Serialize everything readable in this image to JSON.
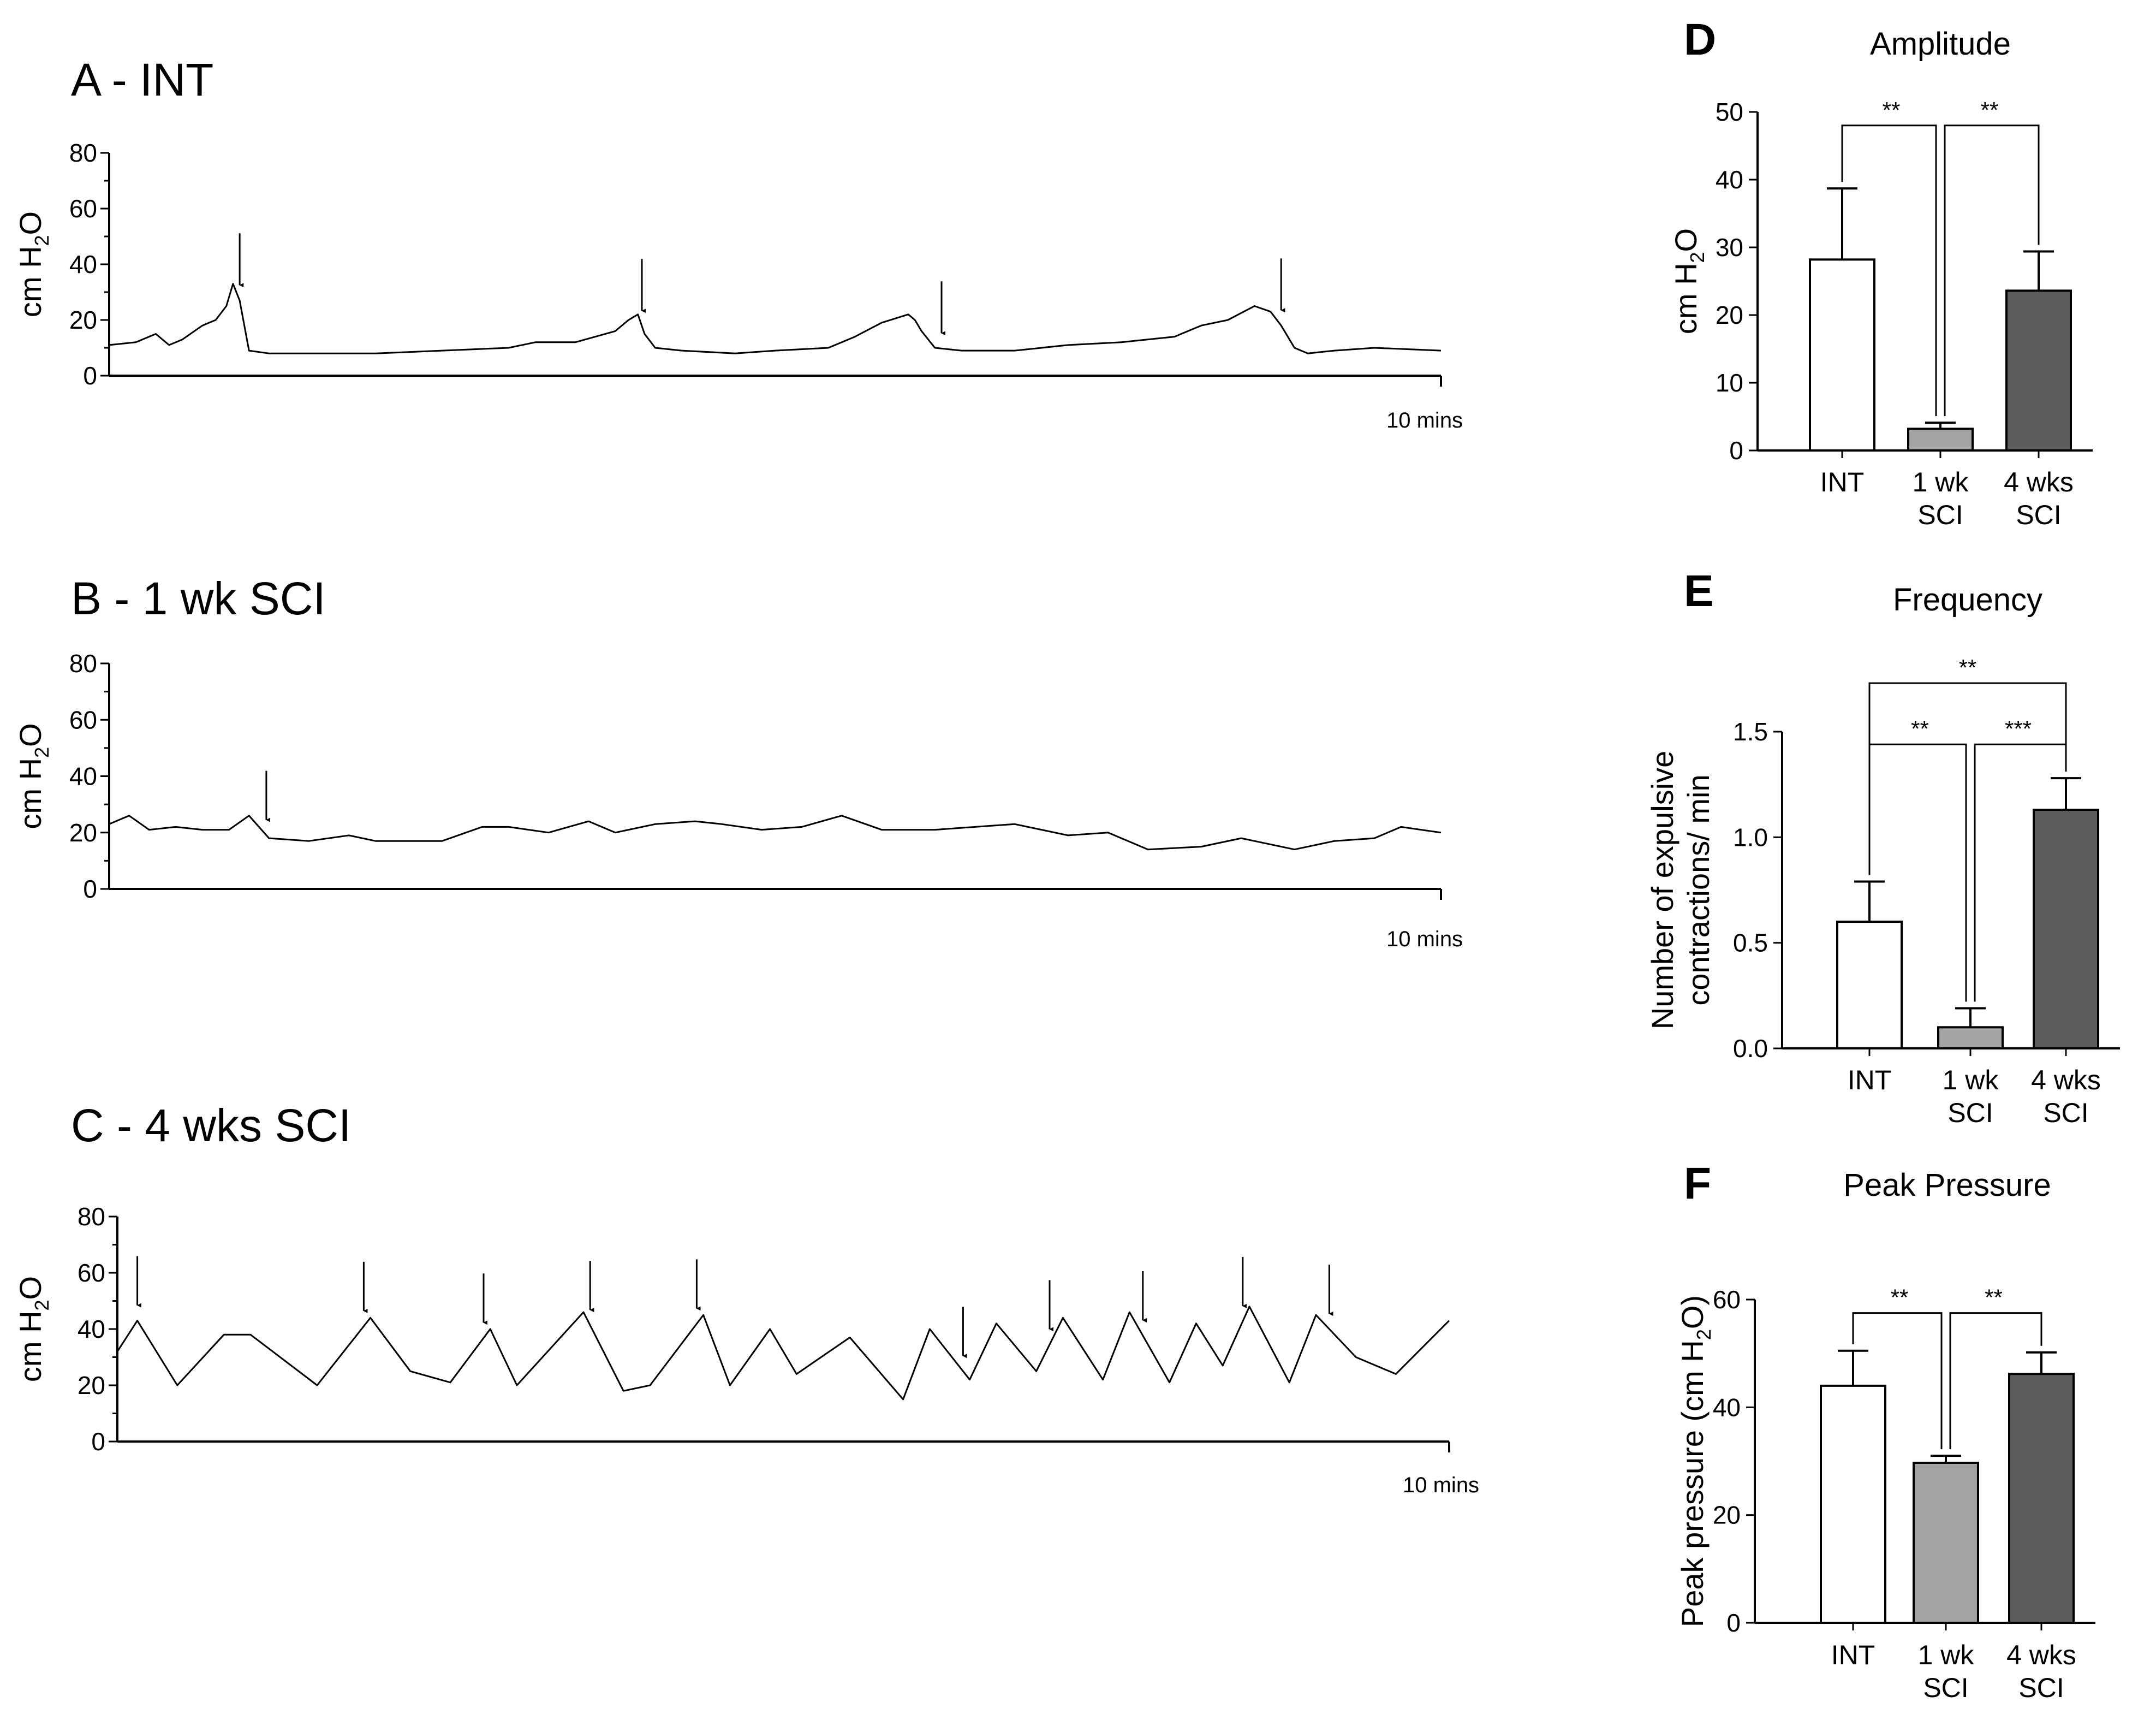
{
  "chart_data": [
    {
      "panel": "A",
      "title": "A - INT",
      "type": "line",
      "ylabel_main": "cm H",
      "ylabel_sub": "2",
      "ylabel_end": "O",
      "yticks": [
        0,
        20,
        40,
        60,
        80
      ],
      "ylim": [
        0,
        80
      ],
      "xlim": [
        0,
        10
      ],
      "x_end_label": "10 mins",
      "series": [
        {
          "name": "INT trace",
          "x": [
            0,
            0.2,
            0.35,
            0.45,
            0.55,
            0.7,
            0.8,
            0.88,
            0.93,
            0.98,
            1.05,
            1.2,
            1.5,
            2.0,
            2.5,
            3.0,
            3.2,
            3.5,
            3.8,
            3.9,
            3.97,
            4.02,
            4.1,
            4.3,
            4.7,
            5.0,
            5.4,
            5.6,
            5.8,
            6.0,
            6.05,
            6.1,
            6.2,
            6.4,
            6.8,
            7.2,
            7.6,
            8.0,
            8.2,
            8.4,
            8.6,
            8.72,
            8.8,
            8.9,
            9.0,
            9.2,
            9.5,
            10.0
          ],
          "values": [
            11,
            12,
            15,
            11,
            13,
            18,
            20,
            25,
            33,
            27,
            9,
            8,
            8,
            8,
            9,
            10,
            12,
            12,
            16,
            20,
            22,
            15,
            10,
            9,
            8,
            9,
            10,
            14,
            19,
            22,
            20,
            16,
            10,
            9,
            9,
            11,
            12,
            14,
            18,
            20,
            25,
            23,
            18,
            10,
            8,
            9,
            10,
            9
          ]
        }
      ],
      "arrows_x": [
        0.98,
        4.0,
        6.25,
        8.8
      ]
    },
    {
      "panel": "B",
      "title": "B - 1 wk SCI",
      "type": "line",
      "ylabel_main": "cm H",
      "ylabel_sub": "2",
      "ylabel_end": "O",
      "yticks": [
        0,
        20,
        40,
        60,
        80
      ],
      "ylim": [
        0,
        80
      ],
      "xlim": [
        0,
        10
      ],
      "x_end_label": "10 mins",
      "series": [
        {
          "name": "1 wk SCI trace",
          "x": [
            0,
            0.15,
            0.3,
            0.5,
            0.7,
            0.9,
            1.05,
            1.2,
            1.5,
            1.8,
            2.0,
            2.2,
            2.5,
            2.8,
            3.0,
            3.3,
            3.6,
            3.8,
            4.1,
            4.4,
            4.6,
            4.9,
            5.2,
            5.5,
            5.8,
            6.2,
            6.5,
            6.8,
            7.2,
            7.5,
            7.8,
            8.2,
            8.5,
            8.9,
            9.2,
            9.5,
            9.7,
            10.0
          ],
          "values": [
            23,
            26,
            21,
            22,
            21,
            21,
            26,
            18,
            17,
            19,
            17,
            17,
            17,
            22,
            22,
            20,
            24,
            20,
            23,
            24,
            23,
            21,
            22,
            26,
            21,
            21,
            22,
            23,
            19,
            20,
            14,
            15,
            18,
            14,
            17,
            18,
            22,
            20
          ]
        }
      ],
      "arrows_x": [
        1.18
      ]
    },
    {
      "panel": "C",
      "title": "C - 4 wks SCI",
      "type": "line",
      "ylabel_main": "cm H",
      "ylabel_sub": "2",
      "ylabel_end": "O",
      "yticks": [
        0,
        20,
        40,
        60,
        80
      ],
      "ylim": [
        0,
        80
      ],
      "xlim": [
        0,
        10
      ],
      "x_end_label": "10 mins",
      "series": [
        {
          "name": "4 wks SCI trace",
          "x": [
            0,
            0.15,
            0.45,
            0.8,
            1.0,
            1.5,
            1.9,
            2.2,
            2.5,
            2.8,
            3.0,
            3.5,
            3.8,
            4.0,
            4.4,
            4.6,
            4.9,
            5.1,
            5.5,
            5.9,
            6.1,
            6.4,
            6.6,
            6.9,
            7.1,
            7.4,
            7.6,
            7.9,
            8.1,
            8.3,
            8.5,
            8.8,
            9.0,
            9.3,
            9.6,
            10.0
          ],
          "values": [
            32,
            43,
            20,
            38,
            38,
            20,
            44,
            25,
            21,
            40,
            20,
            46,
            18,
            20,
            45,
            20,
            40,
            24,
            37,
            15,
            40,
            22,
            42,
            25,
            44,
            22,
            46,
            21,
            42,
            27,
            48,
            21,
            45,
            30,
            24,
            43
          ]
        }
      ],
      "arrows_x": [
        0.15,
        1.85,
        2.75,
        3.55,
        4.35,
        6.35,
        7.0,
        7.7,
        8.45,
        9.1
      ]
    },
    {
      "panel": "D",
      "title": "Amplitude",
      "type": "bar",
      "ylabel_main": "cm H",
      "ylabel_sub": "2",
      "ylabel_end": "O",
      "yticks": [
        0,
        10,
        20,
        30,
        40,
        50
      ],
      "ylim": [
        0,
        50
      ],
      "categories": [
        [
          "INT"
        ],
        [
          "1 wk",
          "SCI"
        ],
        [
          "4 wks",
          "SCI"
        ]
      ],
      "values": [
        28.2,
        3.2,
        23.6
      ],
      "errors": [
        10.5,
        0.9,
        5.8
      ],
      "colors": [
        "#ffffff",
        "#a3a3a6",
        "#5c5c5c"
      ],
      "significance": [
        {
          "from": 0,
          "to": 1,
          "label": "**",
          "level": 48
        },
        {
          "from": 1,
          "to": 2,
          "label": "**",
          "level": 48
        }
      ]
    },
    {
      "panel": "E",
      "title": "Frequency",
      "type": "bar",
      "ylabel_line1": "Number of expulsive",
      "ylabel_line2": "contractions/ min",
      "yticks": [
        "0.0",
        "0.5",
        "1.0",
        "1.5"
      ],
      "ylim": [
        0,
        1.5
      ],
      "categories": [
        [
          "INT"
        ],
        [
          "1 wk",
          "SCI"
        ],
        [
          "4 wks",
          "SCI"
        ]
      ],
      "values": [
        0.6,
        0.1,
        1.13
      ],
      "errors": [
        0.19,
        0.09,
        0.15
      ],
      "colors": [
        "#ffffff",
        "#a3a3a6",
        "#5c5c5c"
      ],
      "significance": [
        {
          "from": 0,
          "to": 1,
          "label": "**",
          "level": 1.44
        },
        {
          "from": 1,
          "to": 2,
          "label": "***",
          "level": 1.44
        },
        {
          "from": 0,
          "to": 2,
          "label": "**",
          "level": 1.73
        }
      ]
    },
    {
      "panel": "F",
      "title": "Peak Pressure",
      "type": "bar",
      "ylabel_main": "Peak pressure (cm H",
      "ylabel_sub": "2",
      "ylabel_end": "O)",
      "yticks": [
        0,
        20,
        40,
        60
      ],
      "ylim": [
        0,
        60
      ],
      "categories": [
        [
          "INT"
        ],
        [
          "1 wk",
          "SCI"
        ],
        [
          "4 wks",
          "SCI"
        ]
      ],
      "values": [
        44,
        29.7,
        46.2
      ],
      "errors": [
        6.5,
        1.3,
        4.0
      ],
      "colors": [
        "#ffffff",
        "#a3a3a6",
        "#5c5c5c"
      ],
      "significance": [
        {
          "from": 0,
          "to": 1,
          "label": "**",
          "level": 57.5
        },
        {
          "from": 1,
          "to": 2,
          "label": "**",
          "level": 57.5
        }
      ]
    }
  ]
}
